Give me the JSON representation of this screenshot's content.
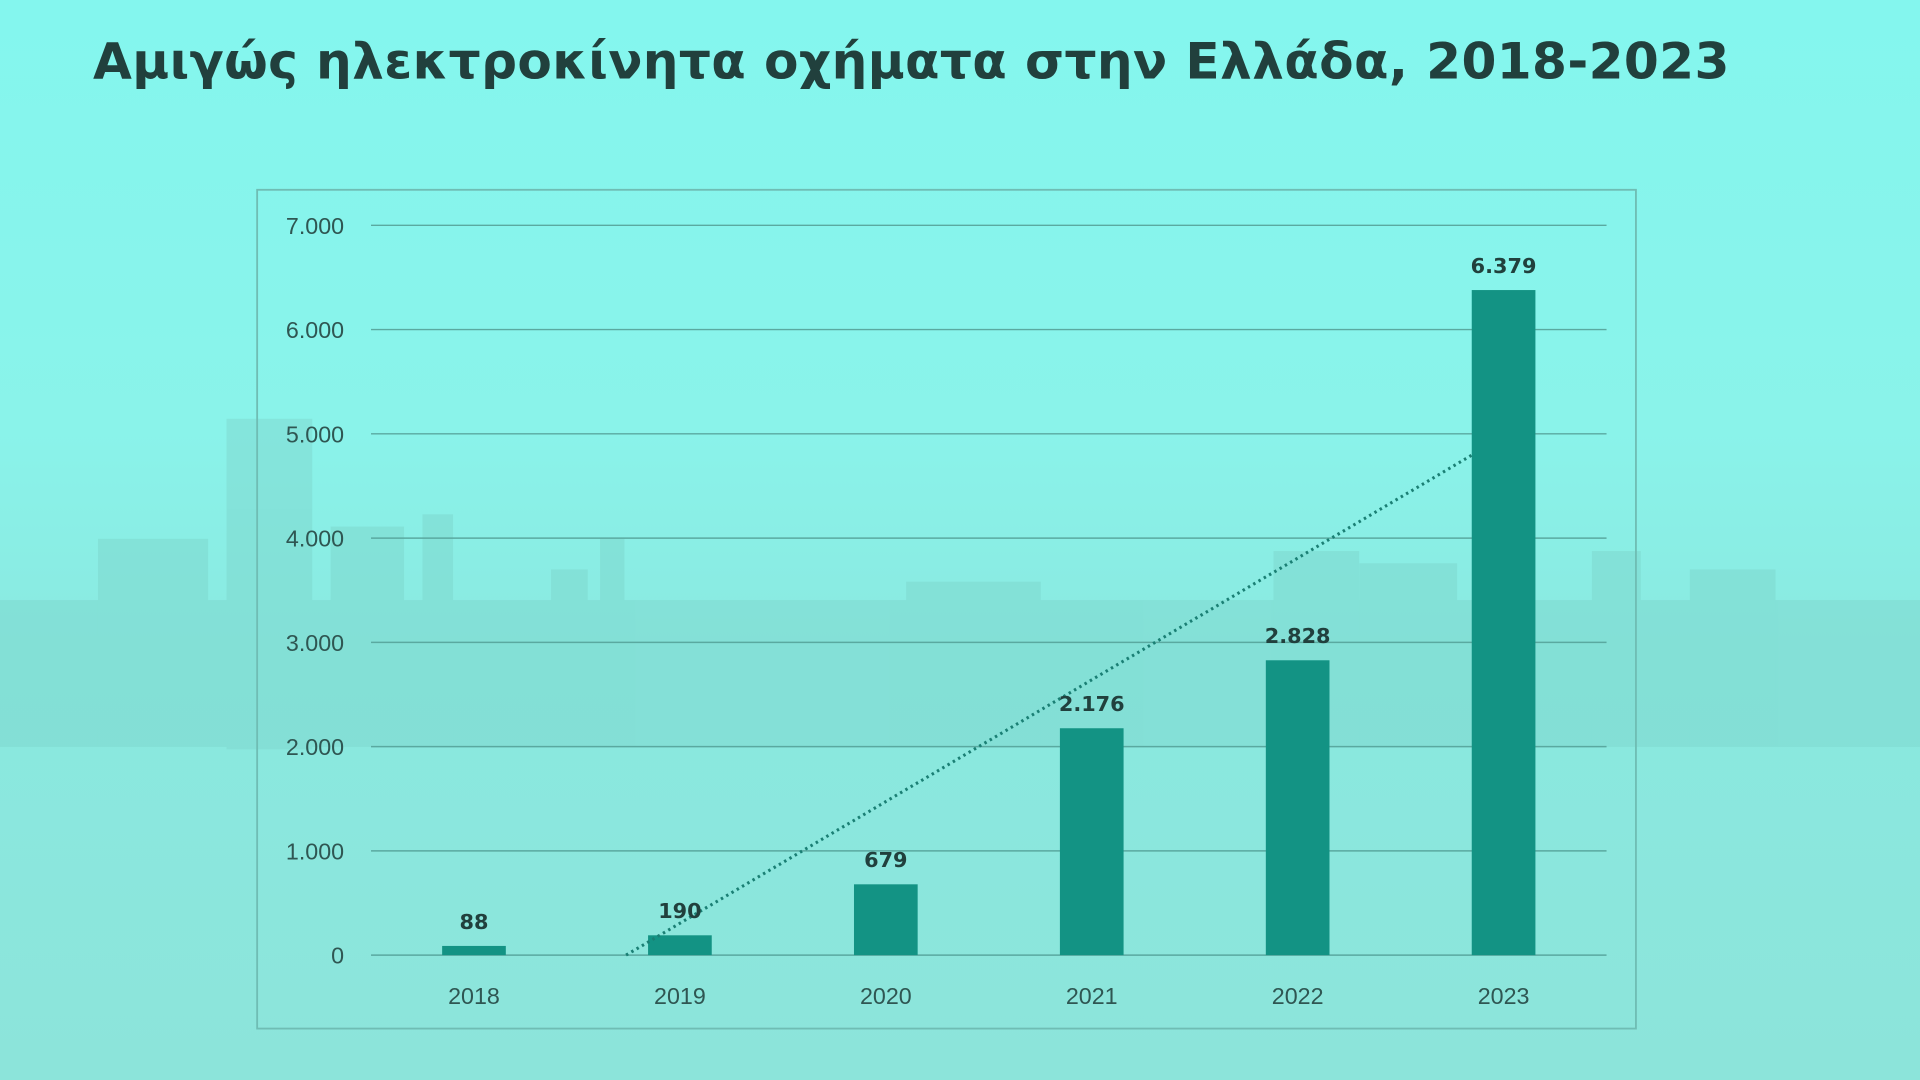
{
  "chart_data": {
    "type": "bar",
    "title": "Αμιγώς ηλεκτροκίνητα οχήματα στην Ελλάδα, 2018-2023",
    "categories": [
      "2018",
      "2019",
      "2020",
      "2021",
      "2022",
      "2023"
    ],
    "values": [
      88,
      190,
      679,
      2176,
      2828,
      6379
    ],
    "data_labels": [
      "88",
      "190",
      "679",
      "2.176",
      "2.828",
      "6.379"
    ],
    "ylim": [
      0,
      7000
    ],
    "yticks": [
      0,
      1000,
      2000,
      3000,
      4000,
      5000,
      6000,
      7000
    ],
    "ytick_labels": [
      "0",
      "1.000",
      "2.000",
      "3.000",
      "4.000",
      "5.000",
      "6.000",
      "7.000"
    ],
    "grid": "horizontal",
    "trendline": "linear, dotted",
    "colors": {
      "bar": "#139384",
      "trendline": "#1a7f74",
      "text": "#21403d",
      "background": "#86f0e6"
    }
  }
}
